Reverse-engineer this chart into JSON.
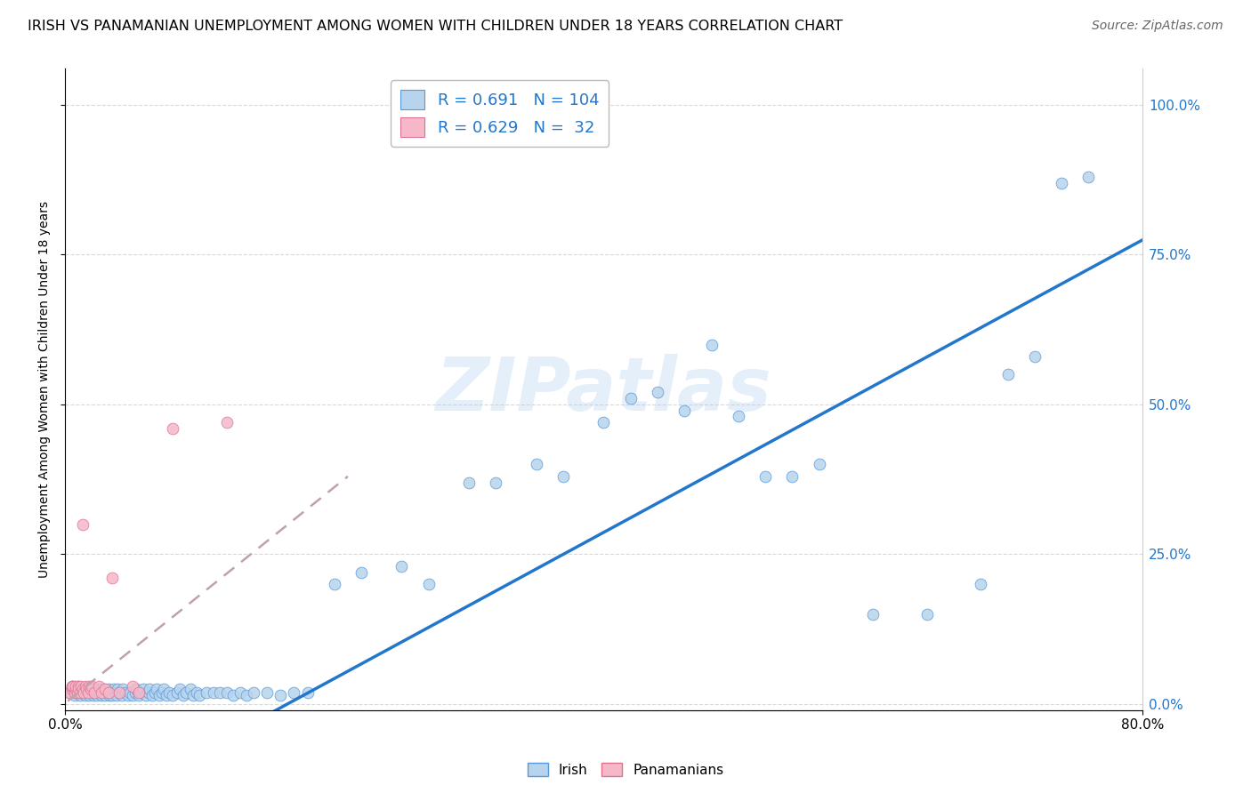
{
  "title": "IRISH VS PANAMANIAN UNEMPLOYMENT AMONG WOMEN WITH CHILDREN UNDER 18 YEARS CORRELATION CHART",
  "source": "Source: ZipAtlas.com",
  "ylabel": "Unemployment Among Women with Children Under 18 years",
  "yticks_labels": [
    "0.0%",
    "25.0%",
    "50.0%",
    "75.0%",
    "100.0%"
  ],
  "yticks_vals": [
    0.0,
    0.25,
    0.5,
    0.75,
    1.0
  ],
  "xlim": [
    0.0,
    0.8
  ],
  "ylim": [
    -0.01,
    1.06
  ],
  "watermark": "ZIPatlas",
  "legend_irish_R": "0.691",
  "legend_irish_N": "104",
  "legend_pan_R": "0.629",
  "legend_pan_N": " 32",
  "irish_fill": "#b8d4ec",
  "irish_edge": "#5599dd",
  "pan_fill": "#f5b8c8",
  "pan_edge": "#e07090",
  "irish_line_color": "#2277cc",
  "pan_line_color": "#c0a0b0",
  "grid_color": "#d8d8d8",
  "bg_color": "#ffffff",
  "title_fontsize": 11.5,
  "tick_fontsize": 11,
  "legend_fontsize": 13,
  "source_fontsize": 10,
  "watermark_fontsize": 60,
  "irish_x": [
    0.003,
    0.005,
    0.006,
    0.007,
    0.008,
    0.009,
    0.01,
    0.011,
    0.012,
    0.013,
    0.014,
    0.015,
    0.016,
    0.017,
    0.018,
    0.019,
    0.02,
    0.021,
    0.022,
    0.023,
    0.024,
    0.025,
    0.026,
    0.027,
    0.028,
    0.029,
    0.03,
    0.031,
    0.032,
    0.033,
    0.034,
    0.035,
    0.036,
    0.037,
    0.038,
    0.039,
    0.04,
    0.042,
    0.043,
    0.045,
    0.047,
    0.048,
    0.05,
    0.052,
    0.053,
    0.055,
    0.057,
    0.058,
    0.06,
    0.062,
    0.063,
    0.065,
    0.067,
    0.068,
    0.07,
    0.072,
    0.073,
    0.075,
    0.077,
    0.08,
    0.083,
    0.085,
    0.088,
    0.09,
    0.093,
    0.095,
    0.098,
    0.1,
    0.105,
    0.11,
    0.115,
    0.12,
    0.125,
    0.13,
    0.135,
    0.14,
    0.15,
    0.16,
    0.17,
    0.18,
    0.2,
    0.22,
    0.25,
    0.27,
    0.3,
    0.32,
    0.35,
    0.37,
    0.4,
    0.42,
    0.44,
    0.46,
    0.48,
    0.5,
    0.52,
    0.54,
    0.56,
    0.6,
    0.64,
    0.68,
    0.7,
    0.72,
    0.74,
    0.76
  ],
  "irish_y": [
    0.02,
    0.03,
    0.02,
    0.015,
    0.025,
    0.02,
    0.03,
    0.015,
    0.02,
    0.025,
    0.02,
    0.015,
    0.025,
    0.02,
    0.015,
    0.025,
    0.02,
    0.015,
    0.02,
    0.025,
    0.015,
    0.02,
    0.025,
    0.015,
    0.02,
    0.025,
    0.015,
    0.02,
    0.025,
    0.015,
    0.02,
    0.015,
    0.025,
    0.02,
    0.015,
    0.025,
    0.02,
    0.015,
    0.025,
    0.02,
    0.015,
    0.02,
    0.015,
    0.02,
    0.025,
    0.015,
    0.02,
    0.025,
    0.015,
    0.02,
    0.025,
    0.015,
    0.02,
    0.025,
    0.015,
    0.02,
    0.025,
    0.015,
    0.02,
    0.015,
    0.02,
    0.025,
    0.015,
    0.02,
    0.025,
    0.015,
    0.02,
    0.015,
    0.02,
    0.02,
    0.02,
    0.02,
    0.015,
    0.02,
    0.015,
    0.02,
    0.02,
    0.015,
    0.02,
    0.02,
    0.2,
    0.22,
    0.23,
    0.2,
    0.37,
    0.37,
    0.4,
    0.38,
    0.47,
    0.51,
    0.52,
    0.49,
    0.6,
    0.48,
    0.38,
    0.38,
    0.4,
    0.15,
    0.15,
    0.2,
    0.55,
    0.58,
    0.87,
    0.88
  ],
  "pan_x": [
    0.003,
    0.005,
    0.005,
    0.006,
    0.007,
    0.008,
    0.008,
    0.009,
    0.01,
    0.01,
    0.011,
    0.012,
    0.013,
    0.013,
    0.014,
    0.015,
    0.016,
    0.017,
    0.018,
    0.019,
    0.02,
    0.022,
    0.025,
    0.027,
    0.03,
    0.032,
    0.035,
    0.04,
    0.05,
    0.055,
    0.08,
    0.12
  ],
  "pan_y": [
    0.02,
    0.025,
    0.03,
    0.03,
    0.02,
    0.025,
    0.03,
    0.02,
    0.03,
    0.025,
    0.02,
    0.03,
    0.025,
    0.3,
    0.02,
    0.03,
    0.025,
    0.02,
    0.03,
    0.025,
    0.03,
    0.02,
    0.03,
    0.02,
    0.025,
    0.02,
    0.21,
    0.02,
    0.03,
    0.02,
    0.46,
    0.47
  ],
  "irish_trendline_x": [
    0.165,
    0.78
  ],
  "irish_trendline_y": [
    0.0,
    0.75
  ],
  "pan_trendline_x": [
    0.002,
    0.21
  ],
  "pan_trendline_y": [
    0.005,
    0.38
  ]
}
